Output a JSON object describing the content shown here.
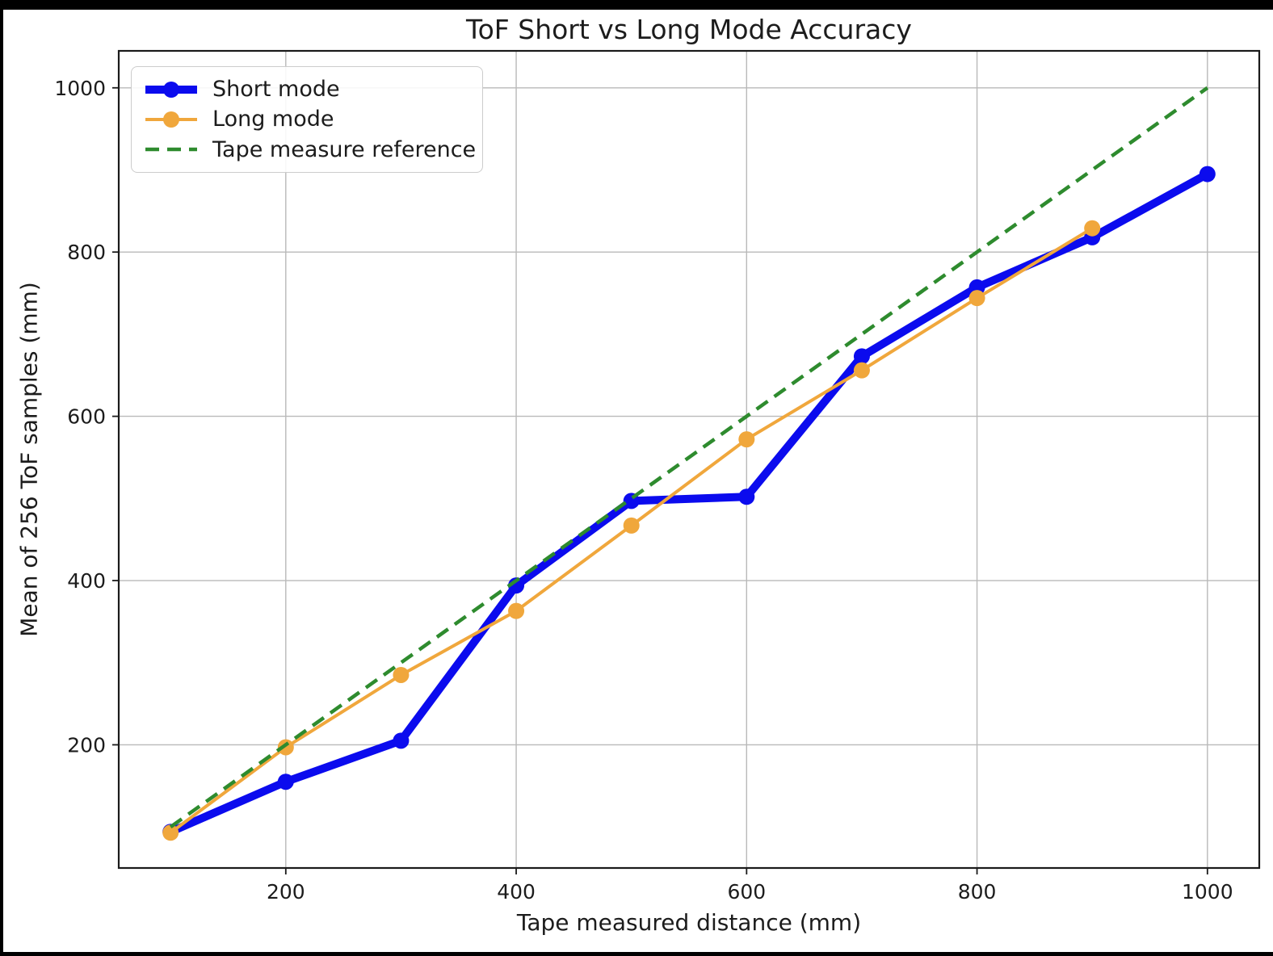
{
  "chart_data": {
    "type": "line",
    "title": "ToF Short vs Long Mode Accuracy",
    "xlabel": "Tape measured distance (mm)",
    "ylabel": "Mean of 256 ToF samples (mm)",
    "xlim": [
      55,
      1045
    ],
    "ylim": [
      50,
      1045
    ],
    "xticks": [
      200,
      400,
      600,
      800,
      1000
    ],
    "yticks": [
      200,
      400,
      600,
      800,
      1000
    ],
    "grid": true,
    "grid_color": "#b9b9b9",
    "legend_position": "upper-left",
    "series": [
      {
        "name": "Short mode",
        "color": "#0b0bee",
        "style": "solid",
        "line_width": 10,
        "marker": "circle",
        "x": [
          100,
          200,
          300,
          400,
          500,
          600,
          700,
          800,
          900,
          1000
        ],
        "y": [
          94,
          155,
          205,
          394,
          497,
          502,
          673,
          757,
          818,
          895
        ]
      },
      {
        "name": "Long mode",
        "color": "#f0a73c",
        "style": "solid",
        "line_width": 4,
        "marker": "circle",
        "x": [
          100,
          200,
          300,
          400,
          500,
          600,
          700,
          800,
          900
        ],
        "y": [
          93,
          197,
          285,
          363,
          467,
          572,
          656,
          744,
          829
        ]
      },
      {
        "name": "Tape measure reference",
        "color": "#2e8b2e",
        "style": "dashed",
        "line_width": 4.5,
        "marker": "none",
        "x": [
          100,
          1000
        ],
        "y": [
          100,
          1000
        ]
      }
    ]
  }
}
